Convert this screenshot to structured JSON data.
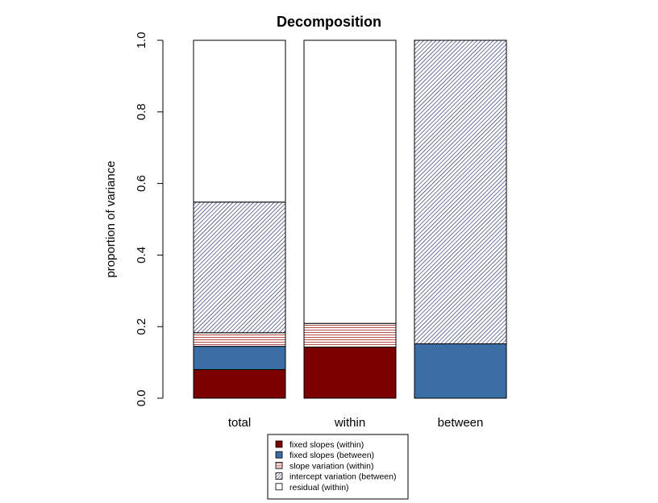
{
  "chart_data": {
    "type": "bar",
    "stacked": true,
    "title": "Decomposition",
    "ylabel": "proportion of variance",
    "ylim": [
      0,
      1
    ],
    "yticks": [
      "0.0",
      "0.2",
      "0.4",
      "0.6",
      "0.8",
      "1.0"
    ],
    "categories": [
      "total",
      "within",
      "between"
    ],
    "series": [
      {
        "name": "fixed slopes (within)",
        "values": [
          0.08,
          0.143,
          0
        ],
        "color": "#7b0000",
        "pattern": "solid"
      },
      {
        "name": "fixed slopes (between)",
        "values": [
          0.065,
          0,
          0.152
        ],
        "color": "#3a6ea5",
        "pattern": "solid"
      },
      {
        "name": "slope variation (within)",
        "values": [
          0.038,
          0.066,
          0
        ],
        "color": "#a32020",
        "pattern": "horizontal-lines"
      },
      {
        "name": "intercept variation (between)",
        "values": [
          0.365,
          0,
          0.848
        ],
        "color": "#232a6b",
        "pattern": "diagonal-lines"
      },
      {
        "name": "residual (within)",
        "values": [
          0.452,
          0.791,
          0
        ],
        "color": "#ffffff",
        "pattern": "none"
      }
    ],
    "legend_position": "bottom"
  }
}
